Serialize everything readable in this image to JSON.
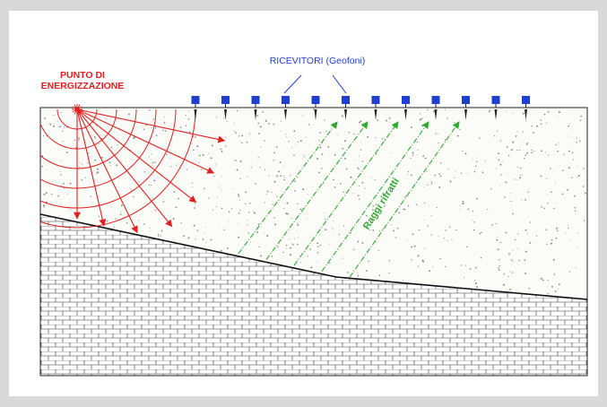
{
  "labels": {
    "source_line1": "PUNTO DI",
    "source_line2": "ENERGIZZAZIONE",
    "receivers": "RICEVITORI (Geofoni)",
    "refracted_rays": "Raggi rifratti"
  },
  "colors": {
    "source": "#e02020",
    "receivers": "#1f3fd0",
    "refracted": "#2eaa2e",
    "outline": "#222222"
  },
  "receivers_count": 12,
  "wavefront_count": 6,
  "direct_ray_count": 7,
  "refracted_ray_count": 5
}
